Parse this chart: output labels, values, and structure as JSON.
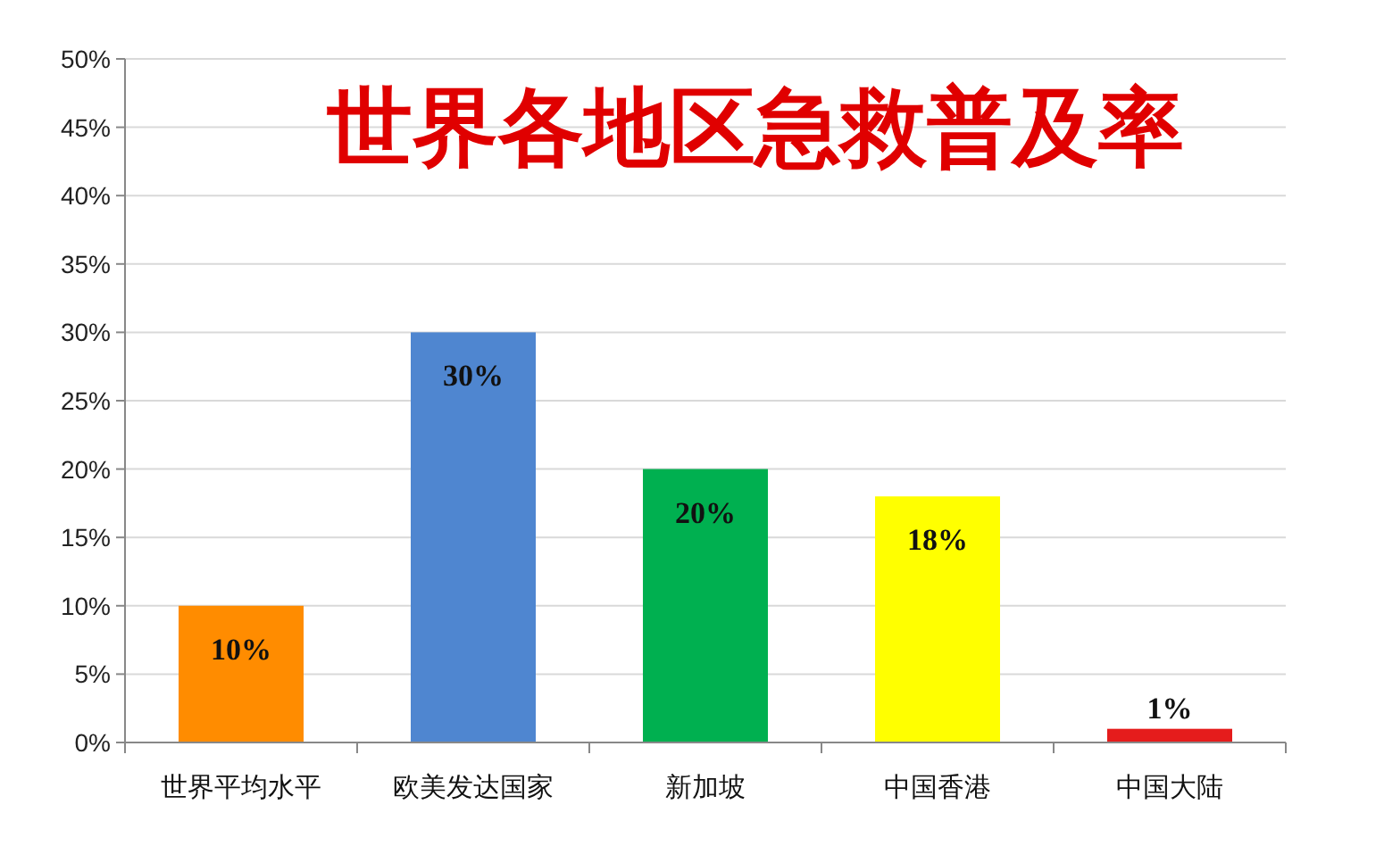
{
  "chart_data": {
    "type": "bar",
    "title": "世界各地区急救普及率",
    "categories": [
      "世界平均水平",
      "欧美发达国家",
      "新加坡",
      "中国香港",
      "中国大陆"
    ],
    "values": [
      10,
      30,
      20,
      18,
      1
    ],
    "colors": [
      "#ff8c00",
      "#4f86d0",
      "#00b050",
      "#ffff00",
      "#e51c1c"
    ],
    "value_labels": [
      "10%",
      "30%",
      "20%",
      "18%",
      "1%"
    ],
    "ylim": [
      0,
      50
    ],
    "yticks": [
      {
        "value": 0,
        "label": "0%"
      },
      {
        "value": 5,
        "label": "5%"
      },
      {
        "value": 10,
        "label": "10%"
      },
      {
        "value": 15,
        "label": "15%"
      },
      {
        "value": 20,
        "label": "20%"
      },
      {
        "value": 25,
        "label": "25%"
      },
      {
        "value": 30,
        "label": "30%"
      },
      {
        "value": 35,
        "label": "35%"
      },
      {
        "value": 40,
        "label": "40%"
      },
      {
        "value": 45,
        "label": "45%"
      },
      {
        "value": 50,
        "label": "50%"
      }
    ],
    "grid": "y"
  }
}
